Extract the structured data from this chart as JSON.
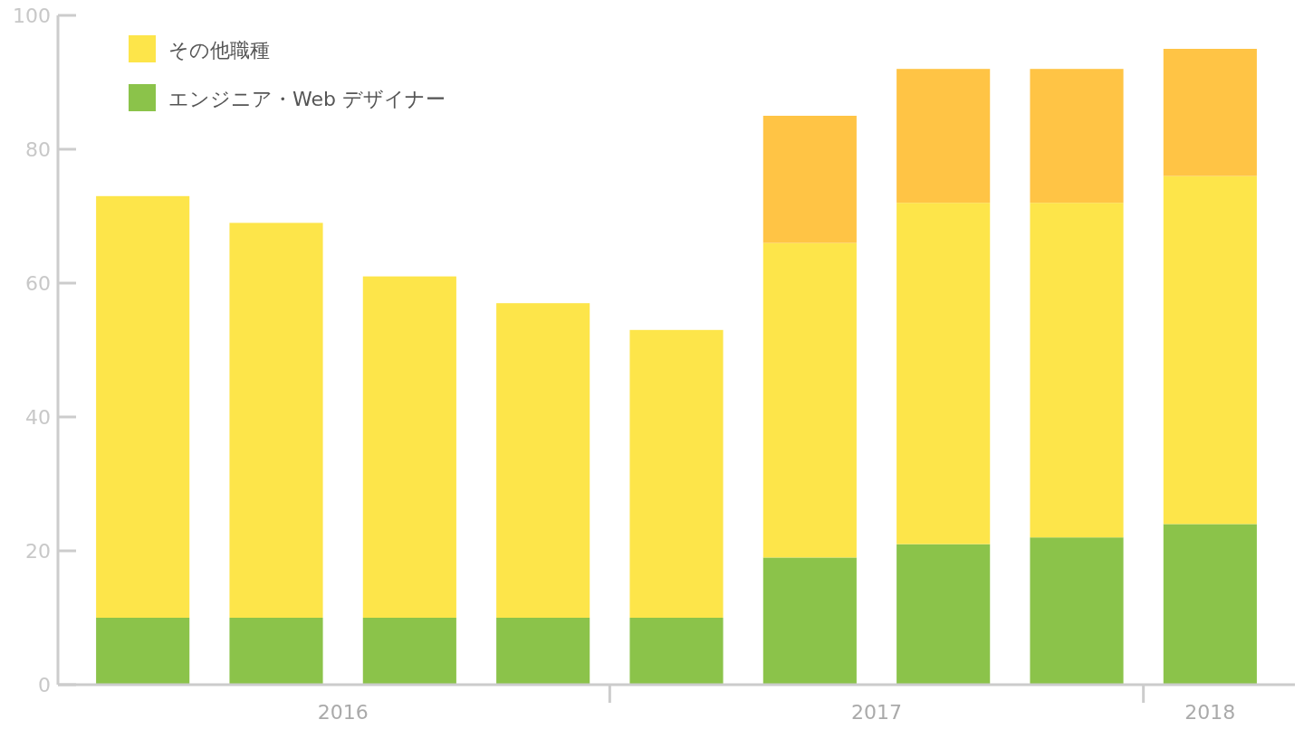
{
  "chart_data": {
    "type": "bar",
    "stacked": true,
    "categories": [
      null,
      null,
      null,
      null,
      null,
      null,
      null,
      null,
      null
    ],
    "series": [
      {
        "name": "エンジニア・Web デザイナー",
        "color": "#8bc34a",
        "values": [
          10,
          10,
          10,
          10,
          10,
          19,
          21,
          22,
          24
        ]
      },
      {
        "name": "その他職種",
        "color": "#fde54a",
        "values": [
          63,
          59,
          51,
          47,
          43,
          47,
          51,
          50,
          52
        ]
      },
      {
        "color": "#ffc445",
        "values": [
          null,
          null,
          null,
          null,
          null,
          19,
          20,
          20,
          19
        ]
      }
    ],
    "ylim": [
      0,
      100
    ],
    "yticks": [
      0,
      20,
      40,
      60,
      80,
      100
    ],
    "grid": false,
    "legend": "top left",
    "annotations": [
      "2016",
      "2017",
      "2018"
    ]
  }
}
